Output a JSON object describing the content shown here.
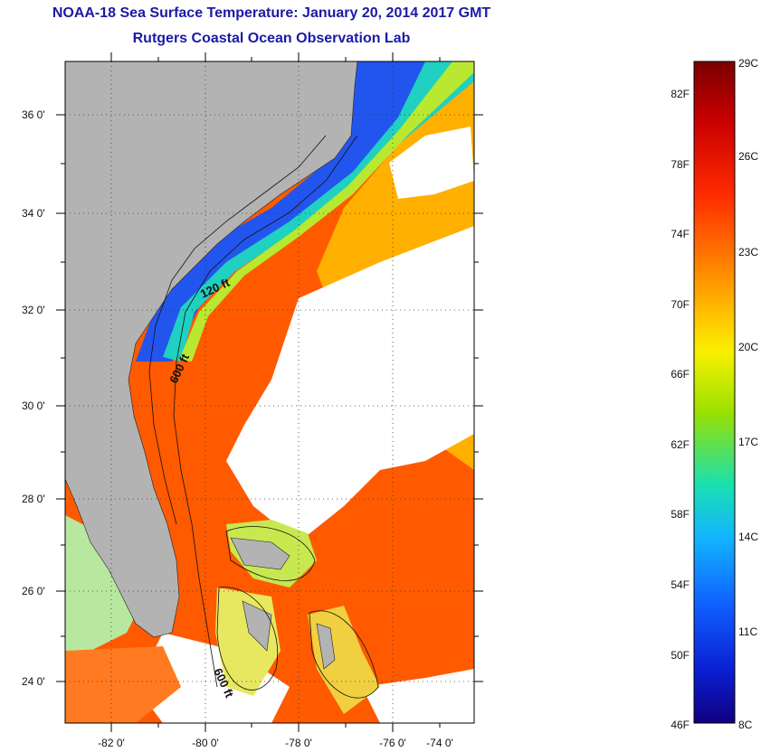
{
  "header": {
    "title": "NOAA-18 Sea Surface Temperature:  January 20, 2014 2017 GMT",
    "subtitle": "Rutgers Coastal Ocean Observation Lab"
  },
  "map": {
    "lat_labels": [
      "36 0'",
      "34 0'",
      "32 0'",
      "30 0'",
      "28 0'",
      "26 0'",
      "24 0'"
    ],
    "lon_labels": [
      "-82 0'",
      "-80 0'",
      "-78 0'",
      "-76 0'",
      "-74 0'"
    ],
    "contour_labels": [
      "120 ft",
      "600 ft",
      "600 ft"
    ]
  },
  "colorbar": {
    "f_labels": [
      "82F",
      "78F",
      "74F",
      "70F",
      "66F",
      "62F",
      "58F",
      "54F",
      "50F",
      "46F"
    ],
    "c_labels": [
      "29C",
      "26C",
      "23C",
      "20C",
      "17C",
      "14C",
      "11C",
      "8C"
    ],
    "colors": [
      "#7a0000",
      "#c80000",
      "#ff2a00",
      "#ff8c00",
      "#ffd000",
      "#f7f000",
      "#9ae000",
      "#19e0b0",
      "#13b4ff",
      "#1060ff",
      "#0a1fd2",
      "#100080"
    ]
  }
}
